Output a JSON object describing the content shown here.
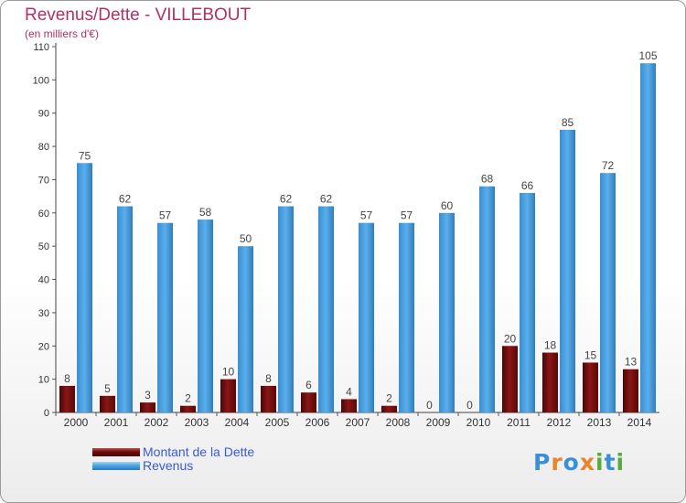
{
  "title": "Revenus/Dette - VILLEBOUT",
  "subtitle": "(en milliers d'€)",
  "colors": {
    "debt": "#7a1010",
    "revenue": "#4aa3e2",
    "title": "#b0306a",
    "legend_text": "#3a5ad8"
  },
  "chart_data": {
    "type": "bar",
    "categories": [
      "2000",
      "2001",
      "2002",
      "2003",
      "2004",
      "2005",
      "2006",
      "2007",
      "2008",
      "2009",
      "2010",
      "2011",
      "2012",
      "2013",
      "2014"
    ],
    "series": [
      {
        "name": "Montant de la Dette",
        "values": [
          8,
          5,
          3,
          2,
          10,
          8,
          6,
          4,
          2,
          0,
          0,
          20,
          18,
          15,
          13
        ]
      },
      {
        "name": "Revenus",
        "values": [
          75,
          62,
          57,
          58,
          50,
          62,
          62,
          57,
          57,
          60,
          68,
          66,
          85,
          72,
          105
        ]
      }
    ],
    "ylim": [
      0,
      110
    ],
    "yticks": [
      0,
      10,
      20,
      30,
      40,
      50,
      60,
      70,
      80,
      90,
      100,
      110
    ],
    "grid": false,
    "legend_position": "bottom-left"
  },
  "legend": {
    "items": [
      {
        "label": "Montant de la Dette",
        "color": "#7a1010"
      },
      {
        "label": "Revenus",
        "color": "#4aa3e2"
      }
    ]
  },
  "logo": {
    "text": "Proxiti",
    "letters": [
      {
        "ch": "P",
        "color": "#3b8fd8"
      },
      {
        "ch": "r",
        "color": "#e8842a"
      },
      {
        "ch": "o",
        "color": "#3b8fd8"
      },
      {
        "ch": "x",
        "color": "#e8842a"
      },
      {
        "ch": "i",
        "color": "#5aab3c"
      },
      {
        "ch": "t",
        "color": "#3b8fd8"
      },
      {
        "ch": "i",
        "color": "#5aab3c"
      }
    ]
  }
}
